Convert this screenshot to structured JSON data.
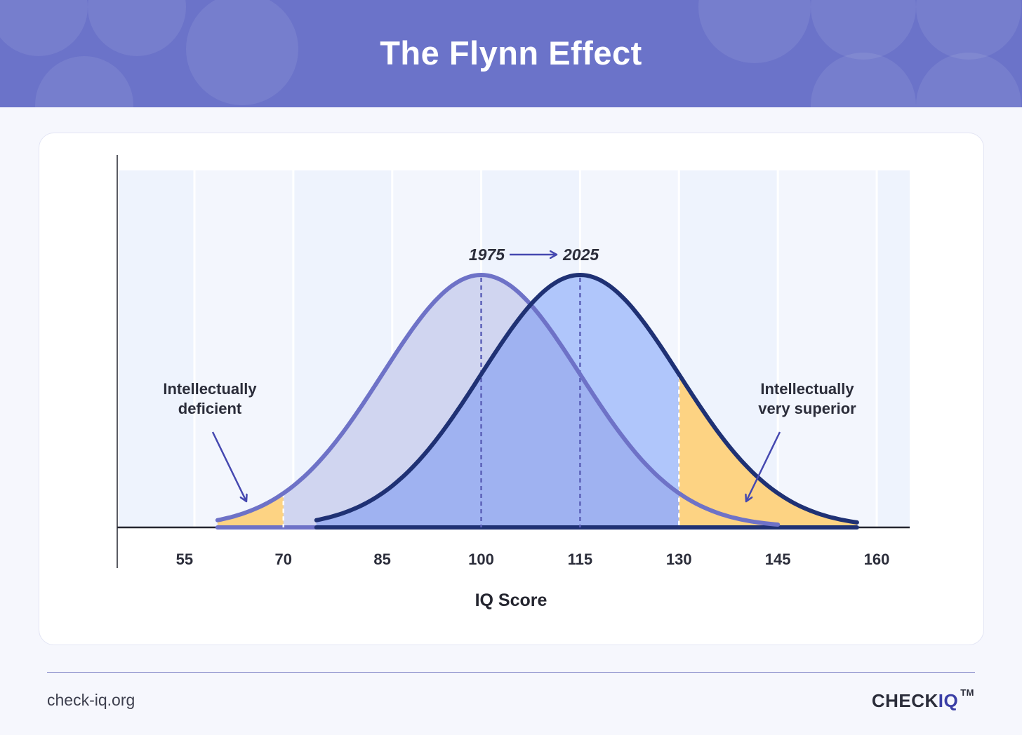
{
  "header": {
    "title": "The Flynn Effect"
  },
  "chart_data": {
    "type": "area",
    "title": "The Flynn Effect",
    "xlabel": "IQ Score",
    "ylabel": "",
    "xlim": [
      45,
      165
    ],
    "x_ticks": [
      55,
      70,
      85,
      100,
      115,
      130,
      145,
      160
    ],
    "series": [
      {
        "name": "1975",
        "mean": 100,
        "sd": 15,
        "range": [
          60,
          145
        ]
      },
      {
        "name": "2025",
        "mean": 115,
        "sd": 15,
        "range": [
          75,
          157
        ]
      }
    ],
    "highlights": [
      {
        "label": "Intellectually deficient",
        "series": "1975",
        "from": 60,
        "to": 70
      },
      {
        "label": "Intellectually very superior",
        "series": "2025",
        "from": 130,
        "to": 157
      }
    ],
    "shift_label": {
      "from": "1975",
      "to": "2025"
    },
    "colors": {
      "header": "#6b73c9",
      "curve_1975": "#6e72c7",
      "fill_1975": "#d0d5f0",
      "curve_2025": "#1f3174",
      "fill_2025": "#b0c6fb",
      "overlap": "#9fb2f1",
      "highlight": "#fdd383",
      "plot_band": "#eef3fd",
      "axis": "#24252f"
    }
  },
  "footer": {
    "site": "check-iq.org",
    "logo_main": "CHECK",
    "logo_accent": "IQ",
    "logo_tm": "TM"
  }
}
